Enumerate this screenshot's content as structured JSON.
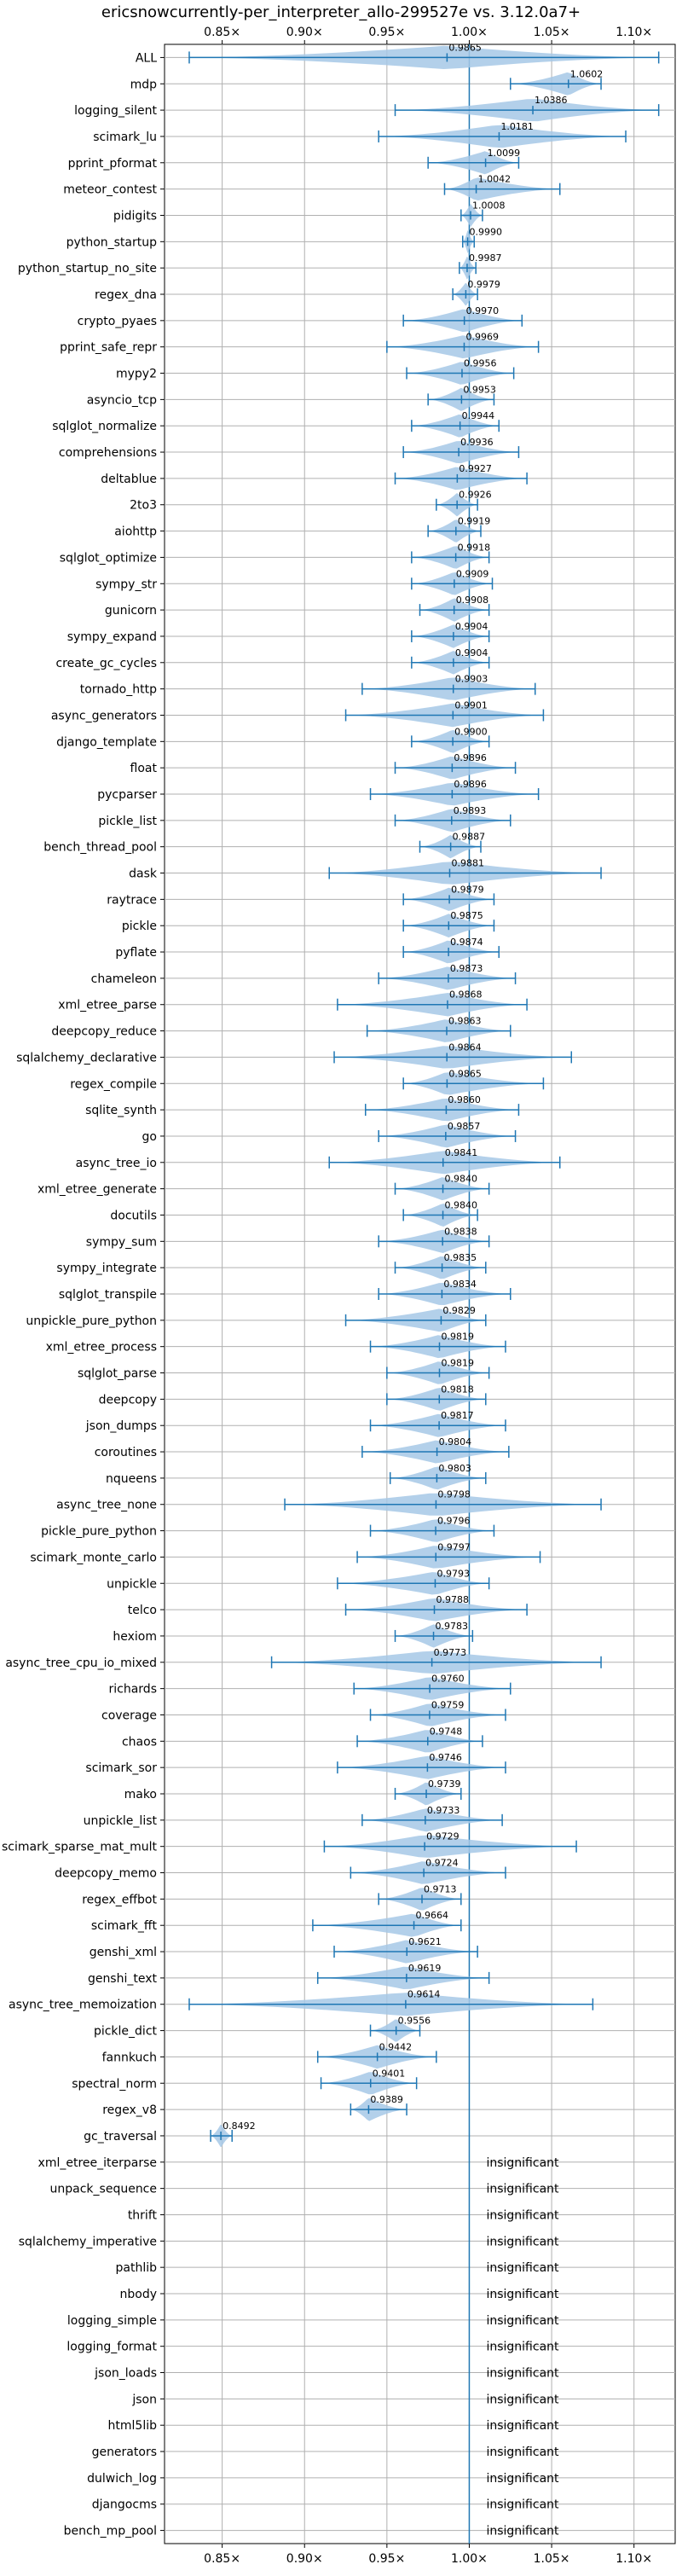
{
  "chart_data": {
    "type": "violin",
    "title": "ericsnowcurrently-per_interpreter_allo-299527e vs. 3.12.0a7+",
    "xlim": [
      0.815,
      1.125
    ],
    "xticks": [
      "0.85×",
      "0.90×",
      "0.95×",
      "1.00×",
      "1.05×",
      "1.10×"
    ],
    "xtick_values": [
      0.85,
      0.9,
      0.95,
      1.0,
      1.05,
      1.1
    ],
    "grid": true,
    "reference_line": 1.0,
    "colors": {
      "violin": "#a6c8e6",
      "line": "#1f77b4",
      "grid": "#b0b0b0"
    },
    "benchmarks": [
      {
        "name": "ALL",
        "median": 0.9865,
        "min": 0.83,
        "max": 1.115
      },
      {
        "name": "mdp",
        "median": 1.0602,
        "min": 1.025,
        "max": 1.08
      },
      {
        "name": "logging_silent",
        "median": 1.0386,
        "min": 0.955,
        "max": 1.115
      },
      {
        "name": "scimark_lu",
        "median": 1.0181,
        "min": 0.945,
        "max": 1.095
      },
      {
        "name": "pprint_pformat",
        "median": 1.0099,
        "min": 0.975,
        "max": 1.03
      },
      {
        "name": "meteor_contest",
        "median": 1.0042,
        "min": 0.985,
        "max": 1.055
      },
      {
        "name": "pidigits",
        "median": 1.0008,
        "min": 0.995,
        "max": 1.008
      },
      {
        "name": "python_startup",
        "median": 0.999,
        "min": 0.996,
        "max": 1.003
      },
      {
        "name": "python_startup_no_site",
        "median": 0.9987,
        "min": 0.994,
        "max": 1.004
      },
      {
        "name": "regex_dna",
        "median": 0.9979,
        "min": 0.99,
        "max": 1.005
      },
      {
        "name": "crypto_pyaes",
        "median": 0.997,
        "min": 0.96,
        "max": 1.032
      },
      {
        "name": "pprint_safe_repr",
        "median": 0.9969,
        "min": 0.95,
        "max": 1.042
      },
      {
        "name": "mypy2",
        "median": 0.9956,
        "min": 0.962,
        "max": 1.027
      },
      {
        "name": "asyncio_tcp",
        "median": 0.9953,
        "min": 0.975,
        "max": 1.015
      },
      {
        "name": "sqlglot_normalize",
        "median": 0.9944,
        "min": 0.965,
        "max": 1.018
      },
      {
        "name": "comprehensions",
        "median": 0.9936,
        "min": 0.96,
        "max": 1.03
      },
      {
        "name": "deltablue",
        "median": 0.9927,
        "min": 0.955,
        "max": 1.035
      },
      {
        "name": "2to3",
        "median": 0.9926,
        "min": 0.98,
        "max": 1.005
      },
      {
        "name": "aiohttp",
        "median": 0.9919,
        "min": 0.975,
        "max": 1.007
      },
      {
        "name": "sqlglot_optimize",
        "median": 0.9918,
        "min": 0.965,
        "max": 1.012
      },
      {
        "name": "sympy_str",
        "median": 0.9909,
        "min": 0.965,
        "max": 1.014
      },
      {
        "name": "gunicorn",
        "median": 0.9908,
        "min": 0.97,
        "max": 1.012
      },
      {
        "name": "sympy_expand",
        "median": 0.9904,
        "min": 0.965,
        "max": 1.012
      },
      {
        "name": "create_gc_cycles",
        "median": 0.9904,
        "min": 0.965,
        "max": 1.012
      },
      {
        "name": "tornado_http",
        "median": 0.9903,
        "min": 0.935,
        "max": 1.04
      },
      {
        "name": "async_generators",
        "median": 0.9901,
        "min": 0.925,
        "max": 1.045
      },
      {
        "name": "django_template",
        "median": 0.99,
        "min": 0.965,
        "max": 1.012
      },
      {
        "name": "float",
        "median": 0.9896,
        "min": 0.955,
        "max": 1.028
      },
      {
        "name": "pycparser",
        "median": 0.9896,
        "min": 0.94,
        "max": 1.042
      },
      {
        "name": "pickle_list",
        "median": 0.9893,
        "min": 0.955,
        "max": 1.025
      },
      {
        "name": "bench_thread_pool",
        "median": 0.9887,
        "min": 0.97,
        "max": 1.007
      },
      {
        "name": "dask",
        "median": 0.9881,
        "min": 0.915,
        "max": 1.08
      },
      {
        "name": "raytrace",
        "median": 0.9879,
        "min": 0.96,
        "max": 1.015
      },
      {
        "name": "pickle",
        "median": 0.9875,
        "min": 0.96,
        "max": 1.015
      },
      {
        "name": "pyflate",
        "median": 0.9874,
        "min": 0.96,
        "max": 1.018
      },
      {
        "name": "chameleon",
        "median": 0.9873,
        "min": 0.945,
        "max": 1.028
      },
      {
        "name": "xml_etree_parse",
        "median": 0.9868,
        "min": 0.92,
        "max": 1.035
      },
      {
        "name": "deepcopy_reduce",
        "median": 0.9863,
        "min": 0.938,
        "max": 1.025
      },
      {
        "name": "sqlalchemy_declarative",
        "median": 0.9864,
        "min": 0.918,
        "max": 1.062
      },
      {
        "name": "regex_compile",
        "median": 0.9865,
        "min": 0.96,
        "max": 1.045
      },
      {
        "name": "sqlite_synth",
        "median": 0.986,
        "min": 0.937,
        "max": 1.03
      },
      {
        "name": "go",
        "median": 0.9857,
        "min": 0.945,
        "max": 1.028
      },
      {
        "name": "async_tree_io",
        "median": 0.9841,
        "min": 0.915,
        "max": 1.055
      },
      {
        "name": "xml_etree_generate",
        "median": 0.984,
        "min": 0.955,
        "max": 1.012
      },
      {
        "name": "docutils",
        "median": 0.984,
        "min": 0.96,
        "max": 1.005
      },
      {
        "name": "sympy_sum",
        "median": 0.9838,
        "min": 0.945,
        "max": 1.012
      },
      {
        "name": "sympy_integrate",
        "median": 0.9835,
        "min": 0.955,
        "max": 1.01
      },
      {
        "name": "sqlglot_transpile",
        "median": 0.9834,
        "min": 0.945,
        "max": 1.025
      },
      {
        "name": "unpickle_pure_python",
        "median": 0.9829,
        "min": 0.925,
        "max": 1.01
      },
      {
        "name": "xml_etree_process",
        "median": 0.9819,
        "min": 0.94,
        "max": 1.022
      },
      {
        "name": "sqlglot_parse",
        "median": 0.9819,
        "min": 0.95,
        "max": 1.012
      },
      {
        "name": "deepcopy",
        "median": 0.9818,
        "min": 0.95,
        "max": 1.01
      },
      {
        "name": "json_dumps",
        "median": 0.9817,
        "min": 0.94,
        "max": 1.022
      },
      {
        "name": "coroutines",
        "median": 0.9804,
        "min": 0.935,
        "max": 1.024
      },
      {
        "name": "nqueens",
        "median": 0.9803,
        "min": 0.952,
        "max": 1.01
      },
      {
        "name": "async_tree_none",
        "median": 0.9798,
        "min": 0.888,
        "max": 1.08
      },
      {
        "name": "pickle_pure_python",
        "median": 0.9796,
        "min": 0.94,
        "max": 1.015
      },
      {
        "name": "scimark_monte_carlo",
        "median": 0.9797,
        "min": 0.932,
        "max": 1.043
      },
      {
        "name": "unpickle",
        "median": 0.9793,
        "min": 0.92,
        "max": 1.012
      },
      {
        "name": "telco",
        "median": 0.9788,
        "min": 0.925,
        "max": 1.035
      },
      {
        "name": "hexiom",
        "median": 0.9783,
        "min": 0.955,
        "max": 1.002
      },
      {
        "name": "async_tree_cpu_io_mixed",
        "median": 0.9773,
        "min": 0.88,
        "max": 1.08
      },
      {
        "name": "richards",
        "median": 0.976,
        "min": 0.93,
        "max": 1.025
      },
      {
        "name": "coverage",
        "median": 0.9759,
        "min": 0.94,
        "max": 1.022
      },
      {
        "name": "chaos",
        "median": 0.9748,
        "min": 0.932,
        "max": 1.008
      },
      {
        "name": "scimark_sor",
        "median": 0.9746,
        "min": 0.92,
        "max": 1.022
      },
      {
        "name": "mako",
        "median": 0.9739,
        "min": 0.955,
        "max": 0.995
      },
      {
        "name": "unpickle_list",
        "median": 0.9733,
        "min": 0.935,
        "max": 1.02
      },
      {
        "name": "scimark_sparse_mat_mult",
        "median": 0.9729,
        "min": 0.912,
        "max": 1.065
      },
      {
        "name": "deepcopy_memo",
        "median": 0.9724,
        "min": 0.928,
        "max": 1.022
      },
      {
        "name": "regex_effbot",
        "median": 0.9713,
        "min": 0.945,
        "max": 0.995
      },
      {
        "name": "scimark_fft",
        "median": 0.9664,
        "min": 0.905,
        "max": 0.995
      },
      {
        "name": "genshi_xml",
        "median": 0.9621,
        "min": 0.918,
        "max": 1.005
      },
      {
        "name": "genshi_text",
        "median": 0.9619,
        "min": 0.908,
        "max": 1.012
      },
      {
        "name": "async_tree_memoization",
        "median": 0.9614,
        "min": 0.83,
        "max": 1.075
      },
      {
        "name": "pickle_dict",
        "median": 0.9556,
        "min": 0.94,
        "max": 0.97
      },
      {
        "name": "fannkuch",
        "median": 0.9442,
        "min": 0.908,
        "max": 0.98
      },
      {
        "name": "spectral_norm",
        "median": 0.9401,
        "min": 0.91,
        "max": 0.968
      },
      {
        "name": "regex_v8",
        "median": 0.9389,
        "min": 0.928,
        "max": 0.962
      },
      {
        "name": "gc_traversal",
        "median": 0.8492,
        "min": 0.843,
        "max": 0.856
      },
      {
        "name": "xml_etree_iterparse",
        "insignificant": true
      },
      {
        "name": "unpack_sequence",
        "insignificant": true
      },
      {
        "name": "thrift",
        "insignificant": true
      },
      {
        "name": "sqlalchemy_imperative",
        "insignificant": true
      },
      {
        "name": "pathlib",
        "insignificant": true
      },
      {
        "name": "nbody",
        "insignificant": true
      },
      {
        "name": "logging_simple",
        "insignificant": true
      },
      {
        "name": "logging_format",
        "insignificant": true
      },
      {
        "name": "json_loads",
        "insignificant": true
      },
      {
        "name": "json",
        "insignificant": true
      },
      {
        "name": "html5lib",
        "insignificant": true
      },
      {
        "name": "generators",
        "insignificant": true
      },
      {
        "name": "dulwich_log",
        "insignificant": true
      },
      {
        "name": "djangocms",
        "insignificant": true
      },
      {
        "name": "bench_mp_pool",
        "insignificant": true
      }
    ],
    "insignificant_label": "insignificant"
  }
}
